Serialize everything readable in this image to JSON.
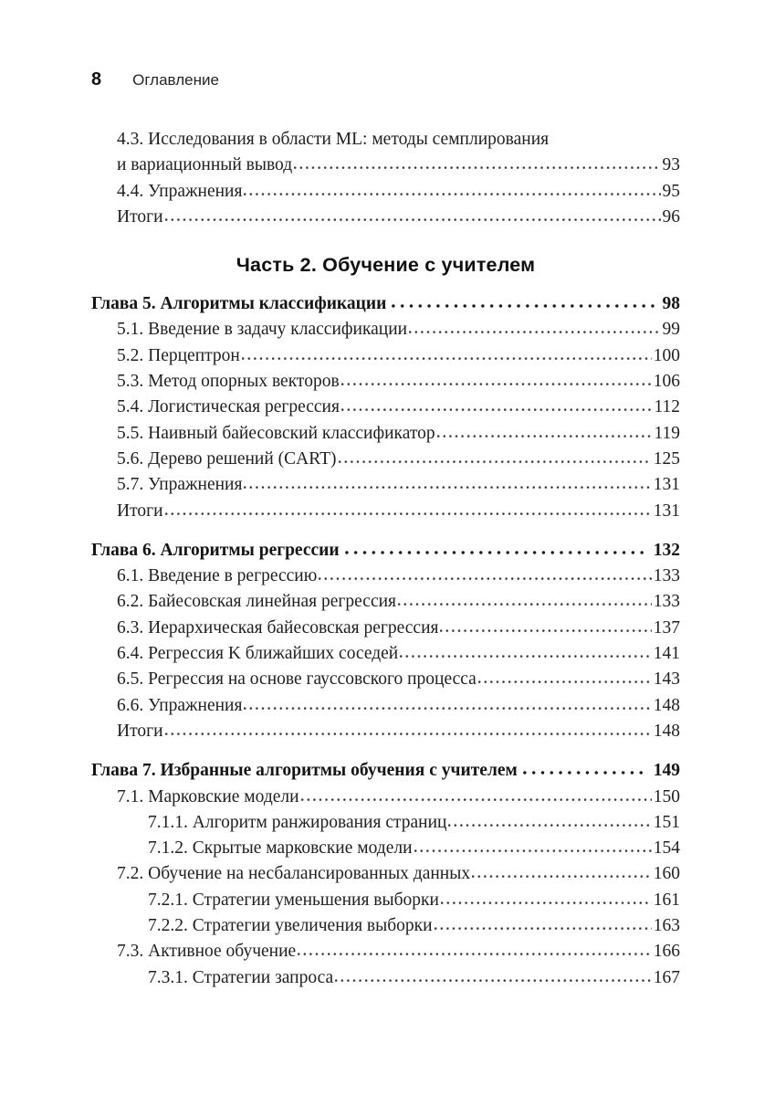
{
  "header": {
    "page_number": "8",
    "title": "Оглавление"
  },
  "colors": {
    "page_background": "#ffffff",
    "text": "#1f1f1f"
  },
  "toc": {
    "items": [
      {
        "kind": "entry",
        "level": 1,
        "pre": "4.3. Исследования в области ML: методы семплирования",
        "text": "и вариационный вывод",
        "page": "93"
      },
      {
        "kind": "entry",
        "level": 1,
        "text": "4.4. Упражнения",
        "page": "95"
      },
      {
        "kind": "entry",
        "level": 1,
        "text": "Итоги",
        "page": "96"
      },
      {
        "kind": "part",
        "text": "Часть 2. Обучение с учителем"
      },
      {
        "kind": "chapter",
        "text": "Глава 5. Алгоритмы классификации",
        "page": "98"
      },
      {
        "kind": "entry",
        "level": 1,
        "text": "5.1. Введение в задачу классификации",
        "page": "99"
      },
      {
        "kind": "entry",
        "level": 1,
        "text": "5.2. Перцептрон",
        "page": "100"
      },
      {
        "kind": "entry",
        "level": 1,
        "text": "5.3. Метод опорных векторов",
        "page": "106"
      },
      {
        "kind": "entry",
        "level": 1,
        "text": "5.4. Логистическая регрессия",
        "page": "112"
      },
      {
        "kind": "entry",
        "level": 1,
        "text": "5.5. Наивный байесовский классификатор",
        "page": "119"
      },
      {
        "kind": "entry",
        "level": 1,
        "text": "5.6. Дерево решений (CART)",
        "page": "125"
      },
      {
        "kind": "entry",
        "level": 1,
        "text": "5.7. Упражнения",
        "page": "131"
      },
      {
        "kind": "entry",
        "level": 1,
        "text": "Итоги",
        "page": "131"
      },
      {
        "kind": "chapter",
        "text": "Глава 6. Алгоритмы регрессии",
        "page": "132"
      },
      {
        "kind": "entry",
        "level": 1,
        "text": "6.1. Введение в регрессию",
        "page": "133"
      },
      {
        "kind": "entry",
        "level": 1,
        "text": "6.2. Байесовская линейная регрессия",
        "page": "133"
      },
      {
        "kind": "entry",
        "level": 1,
        "text": "6.3. Иерархическая байесовская регрессия",
        "page": "137"
      },
      {
        "kind": "entry",
        "level": 1,
        "text": "6.4. Регрессия K ближайших соседей",
        "page": "141"
      },
      {
        "kind": "entry",
        "level": 1,
        "text": "6.5. Регрессия на основе гауссовского процесса",
        "page": "143"
      },
      {
        "kind": "entry",
        "level": 1,
        "text": "6.6. Упражнения",
        "page": "148"
      },
      {
        "kind": "entry",
        "level": 1,
        "text": "Итоги",
        "page": "148"
      },
      {
        "kind": "chapter",
        "text": "Глава 7. Избранные алгоритмы обучения с учителем",
        "page": "149"
      },
      {
        "kind": "entry",
        "level": 1,
        "text": "7.1. Марковские модели",
        "page": "150"
      },
      {
        "kind": "entry",
        "level": 2,
        "text": "7.1.1. Алгоритм ранжирования страниц",
        "page": "151"
      },
      {
        "kind": "entry",
        "level": 2,
        "text": "7.1.2. Скрытые марковские модели",
        "page": "154"
      },
      {
        "kind": "entry",
        "level": 1,
        "text": "7.2. Обучение на несбалансированных данных",
        "page": "160"
      },
      {
        "kind": "entry",
        "level": 2,
        "text": "7.2.1. Стратегии уменьшения выборки",
        "page": "161"
      },
      {
        "kind": "entry",
        "level": 2,
        "text": "7.2.2. Стратегии увеличения выборки",
        "page": "163"
      },
      {
        "kind": "entry",
        "level": 1,
        "text": "7.3. Активное обучение",
        "page": "166"
      },
      {
        "kind": "entry",
        "level": 2,
        "text": "7.3.1. Стратегии запроса",
        "page": "167"
      }
    ]
  }
}
